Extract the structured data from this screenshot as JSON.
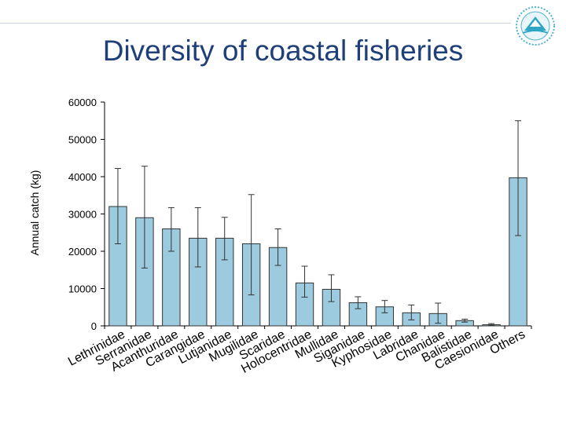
{
  "title": "Diversity of coastal fisheries",
  "chart_data": {
    "type": "bar",
    "ylabel": "Annual catch (kg)",
    "xlabel": "",
    "ylim": [
      0,
      60000
    ],
    "yticks": [
      "0",
      "10000",
      "20000",
      "30000",
      "40000",
      "50000",
      "60000"
    ],
    "categories": [
      "Lethrinidae",
      "Serranidae",
      "Acanthuridae",
      "Carangidae",
      "Lutjanidae",
      "Mugilidae",
      "Scaridae",
      "Holocentridae",
      "Mullidae",
      "Siganidae",
      "Kyphosidae",
      "Labridae",
      "Chanidae",
      "Balistidae",
      "Caesionidae",
      "Others"
    ],
    "values": [
      32000,
      29000,
      26000,
      23500,
      23500,
      22000,
      21000,
      11500,
      9800,
      6200,
      5100,
      3500,
      3300,
      1400,
      300,
      39700
    ],
    "error_low": [
      22000,
      15500,
      20000,
      15800,
      17700,
      8300,
      16200,
      7700,
      6500,
      4600,
      3500,
      1600,
      700,
      1000,
      100,
      24200
    ],
    "error_high": [
      42200,
      42800,
      31700,
      31700,
      29100,
      35200,
      26000,
      16000,
      13700,
      7800,
      6800,
      5600,
      6100,
      1800,
      600,
      55000
    ],
    "colors": {
      "bar_fill": "#9ccbdf",
      "bar_stroke": "#333333",
      "title": "#1f3f78"
    },
    "grid": false,
    "legend": "none"
  }
}
